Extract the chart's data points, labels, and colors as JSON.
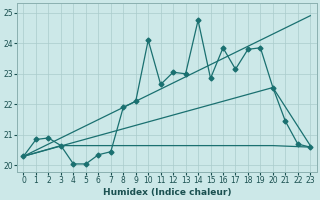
{
  "xlabel": "Humidex (Indice chaleur)",
  "xlim": [
    -0.5,
    23.5
  ],
  "ylim": [
    19.8,
    25.3
  ],
  "yticks": [
    20,
    21,
    22,
    23,
    24,
    25
  ],
  "xticks": [
    0,
    1,
    2,
    3,
    4,
    5,
    6,
    7,
    8,
    9,
    10,
    11,
    12,
    13,
    14,
    15,
    16,
    17,
    18,
    19,
    20,
    21,
    22,
    23
  ],
  "bg_color": "#cce8e8",
  "grid_color": "#aacccc",
  "line_color": "#1a7070",
  "line1_x": [
    0,
    1,
    2,
    3,
    4,
    5,
    6,
    7,
    8,
    9,
    10,
    11,
    12,
    13,
    14,
    15,
    16,
    17,
    18,
    19,
    20,
    21,
    22,
    23
  ],
  "line1_y": [
    20.3,
    20.85,
    20.9,
    20.65,
    20.05,
    20.05,
    20.35,
    20.45,
    21.9,
    22.1,
    24.1,
    22.65,
    23.05,
    23.0,
    24.75,
    22.85,
    23.85,
    23.15,
    23.8,
    23.85,
    22.55,
    21.45,
    20.7,
    20.6
  ],
  "line2_x": [
    0,
    23
  ],
  "line2_y": [
    20.3,
    24.9
  ],
  "line3_x": [
    0,
    20,
    23
  ],
  "line3_y": [
    20.3,
    22.55,
    20.65
  ],
  "line4_x": [
    0,
    3,
    20,
    23
  ],
  "line4_y": [
    20.3,
    20.65,
    20.65,
    20.6
  ]
}
